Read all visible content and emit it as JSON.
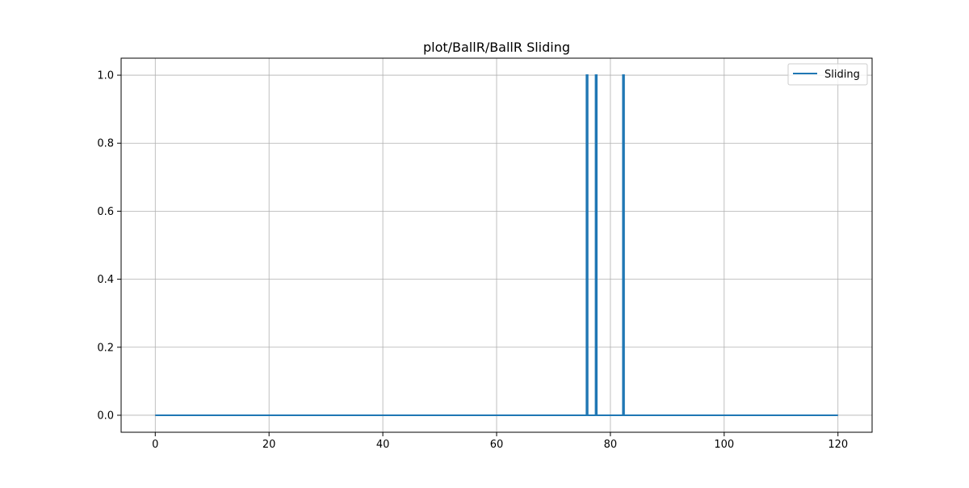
{
  "chart_data": {
    "type": "line",
    "title": "plot/BallR/BallR Sliding",
    "xlabel": "",
    "ylabel": "",
    "xlim": [
      -6,
      126
    ],
    "ylim": [
      -0.05,
      1.05
    ],
    "xticks": [
      0,
      20,
      40,
      60,
      80,
      100,
      120
    ],
    "yticks": [
      0.0,
      0.2,
      0.4,
      0.6,
      0.8,
      1.0
    ],
    "xtick_labels": [
      "0",
      "20",
      "40",
      "60",
      "80",
      "100",
      "120"
    ],
    "ytick_labels": [
      "0.0",
      "0.2",
      "0.4",
      "0.6",
      "0.8",
      "1.0"
    ],
    "grid": true,
    "legend": {
      "position": "upper right",
      "entries": [
        "Sliding"
      ]
    },
    "series": [
      {
        "name": "Sliding",
        "color": "#1f77b4",
        "x": [
          0,
          75.8,
          75.8,
          76.0,
          76.0,
          77.4,
          77.4,
          77.6,
          77.6,
          82.2,
          82.2,
          82.4,
          82.4,
          120
        ],
        "y": [
          0,
          0,
          1,
          1,
          0,
          0,
          1,
          1,
          0,
          0,
          1,
          1,
          0,
          0
        ]
      }
    ]
  }
}
